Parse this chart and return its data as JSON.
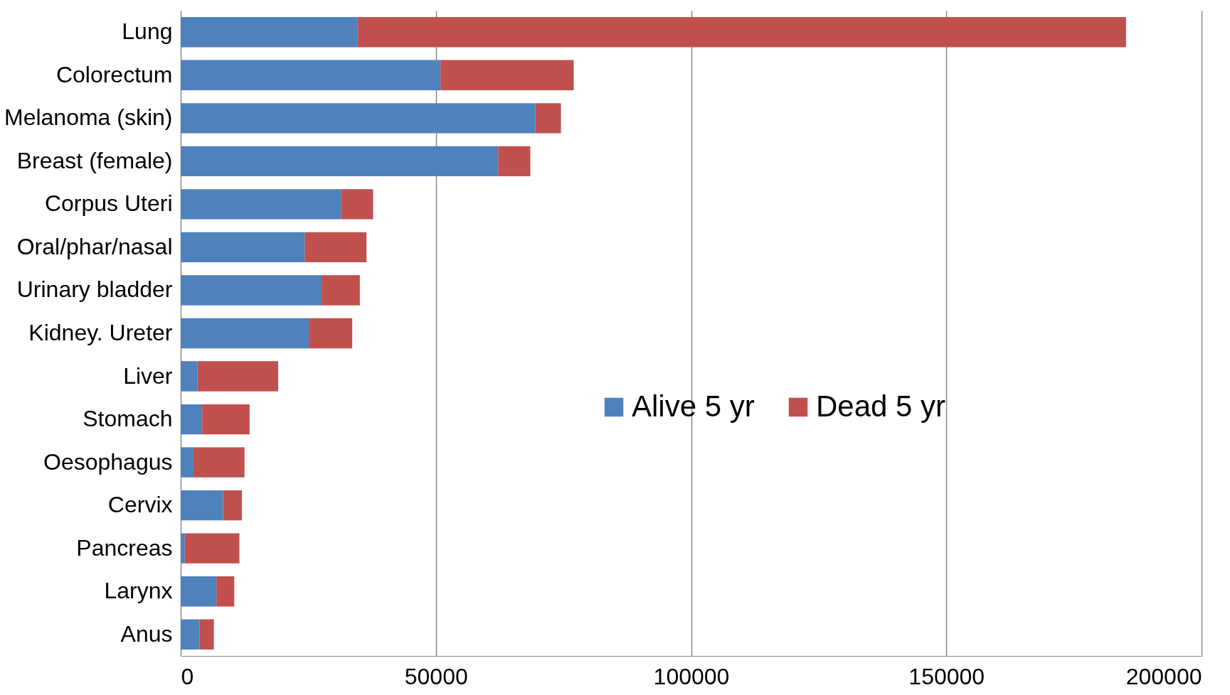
{
  "chart_data": {
    "type": "bar",
    "orientation": "horizontal",
    "stacked": true,
    "categories": [
      "Lung",
      "Colorectum",
      "Melanoma (skin)",
      "Breast (female)",
      "Corpus Uteri",
      "Oral/phar/nasal",
      "Urinary bladder",
      "Kidney. Ureter",
      "Liver",
      "Stomach",
      "Oesophagus",
      "Cervix",
      "Pancreas",
      "Larynx",
      "Anus"
    ],
    "series": [
      {
        "name": "Alive 5 yr",
        "color": "#4f81bd",
        "values": [
          34600,
          50900,
          69500,
          62200,
          31400,
          24300,
          27600,
          25100,
          3300,
          4200,
          2500,
          8300,
          800,
          7000,
          3700
        ]
      },
      {
        "name": "Dead 5 yr",
        "color": "#c0504d",
        "values": [
          150600,
          26100,
          5000,
          6300,
          6300,
          12100,
          7500,
          8500,
          15800,
          9300,
          10000,
          3700,
          10700,
          3500,
          2800
        ]
      }
    ],
    "xlim": [
      0,
      200000
    ],
    "xticks": [
      0,
      50000,
      100000,
      150000,
      200000
    ],
    "grid": "x",
    "legend": "right"
  }
}
